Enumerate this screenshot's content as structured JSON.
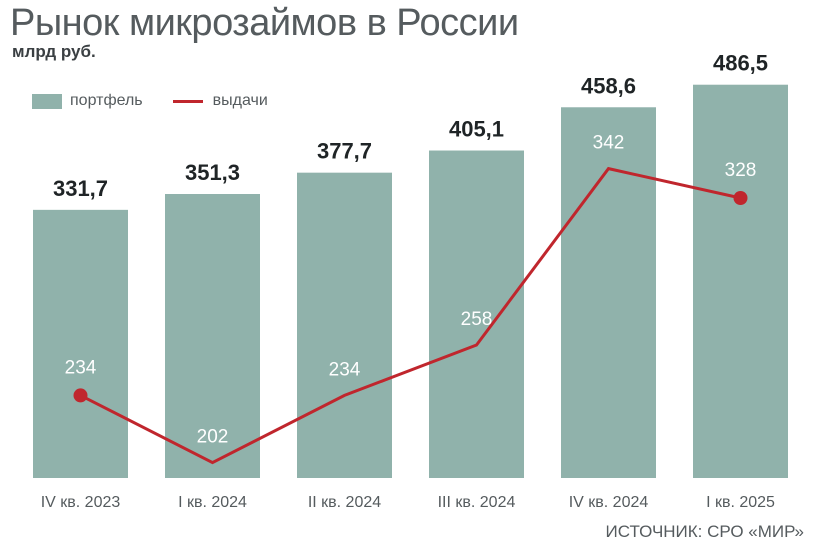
{
  "title": "Рынок микрозаймов в России",
  "subtitle": "млрд руб.",
  "source": "ИСТОЧНИК: СРО «МИР»",
  "colors": {
    "bar": "#90b2ab",
    "line": "#c0262d"
  },
  "chart_data": {
    "type": "bar",
    "categories": [
      "IV кв. 2023",
      "I кв. 2024",
      "II кв. 2024",
      "III кв. 2024",
      "IV кв. 2024",
      "I кв. 2025"
    ],
    "series": [
      {
        "name": "портфель",
        "type": "bar",
        "values": [
          331.7,
          351.3,
          377.7,
          405.1,
          458.6,
          486.5
        ],
        "labels": [
          "331,7",
          "351,3",
          "377,7",
          "405,1",
          "458,6",
          "486,5"
        ]
      },
      {
        "name": "выдачи",
        "type": "line",
        "values": [
          234,
          202,
          234,
          258,
          342,
          328
        ],
        "labels": [
          "234",
          "202",
          "234",
          "258",
          "342",
          "328"
        ]
      }
    ],
    "title": "Рынок микрозаймов в России",
    "ylabel": "млрд руб.",
    "legend": "top-left",
    "grid": false
  }
}
